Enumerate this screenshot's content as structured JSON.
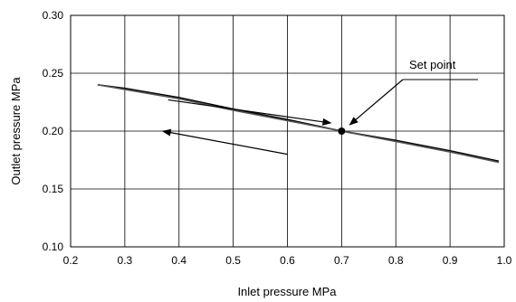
{
  "chart_data": {
    "type": "line",
    "xlabel": "Inlet pressure MPa",
    "ylabel": "Outlet pressure MPa",
    "xlim": [
      0.2,
      1.0
    ],
    "ylim": [
      0.1,
      0.3
    ],
    "x_ticks": [
      "0.2",
      "0.3",
      "0.4",
      "0.5",
      "0.6",
      "0.7",
      "0.8",
      "0.9",
      "1.0"
    ],
    "y_ticks": [
      "0.10",
      "0.15",
      "0.20",
      "0.25",
      "0.30"
    ],
    "grid": true,
    "series": [
      {
        "color": "#000000",
        "x": [
          0.25,
          0.3,
          0.4,
          0.5,
          0.6,
          0.7,
          0.8,
          0.9,
          0.99
        ],
        "y": [
          0.24,
          0.237,
          0.229,
          0.219,
          0.21,
          0.2,
          0.192,
          0.183,
          0.174
        ]
      },
      {
        "color": "#555555",
        "x": [
          0.25,
          0.3,
          0.4,
          0.5,
          0.6,
          0.7,
          0.8,
          0.9,
          0.99
        ],
        "y": [
          0.24,
          0.236,
          0.228,
          0.218,
          0.209,
          0.2,
          0.191,
          0.182,
          0.173
        ]
      }
    ],
    "set_point": {
      "x": 0.7,
      "y": 0.2,
      "label": "Set point"
    },
    "arrows": [
      {
        "from": [
          0.38,
          0.227
        ],
        "to": [
          0.68,
          0.207
        ]
      },
      {
        "from": [
          0.6,
          0.18
        ],
        "to": [
          0.37,
          0.2
        ]
      }
    ]
  }
}
